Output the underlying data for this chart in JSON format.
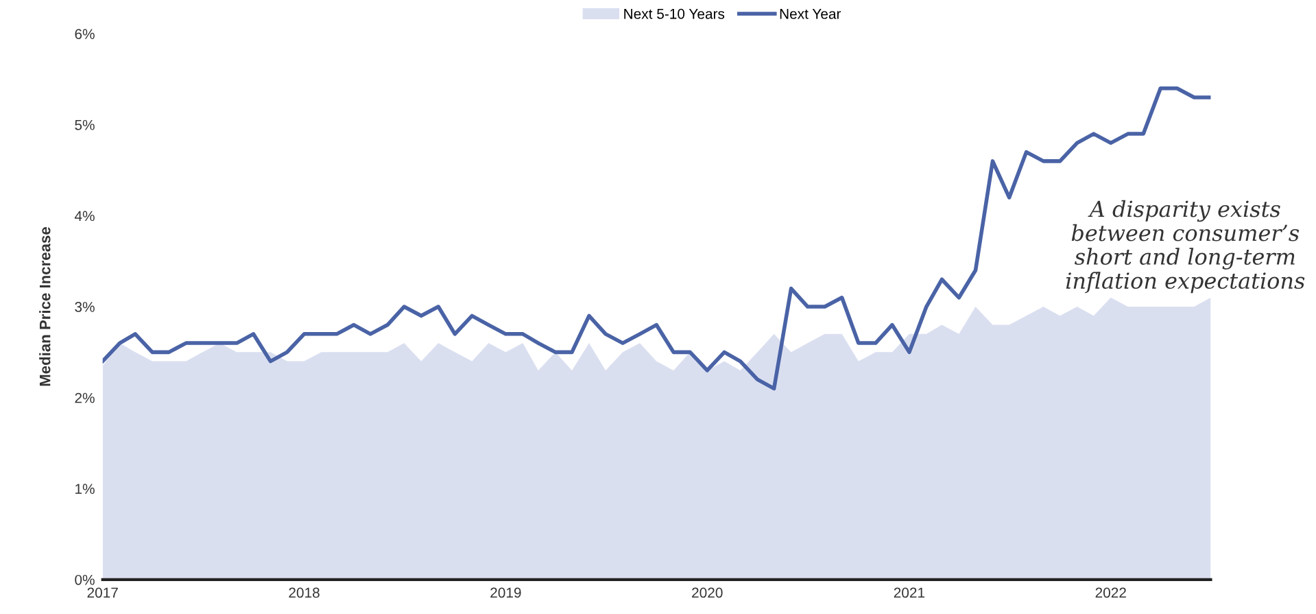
{
  "chart_data": {
    "type": "line",
    "ylabel": "Median Price Increase",
    "x": [
      "2017-01",
      "2017-02",
      "2017-03",
      "2017-04",
      "2017-05",
      "2017-06",
      "2017-07",
      "2017-08",
      "2017-09",
      "2017-10",
      "2017-11",
      "2017-12",
      "2018-01",
      "2018-02",
      "2018-03",
      "2018-04",
      "2018-05",
      "2018-06",
      "2018-07",
      "2018-08",
      "2018-09",
      "2018-10",
      "2018-11",
      "2018-12",
      "2019-01",
      "2019-02",
      "2019-03",
      "2019-04",
      "2019-05",
      "2019-06",
      "2019-07",
      "2019-08",
      "2019-09",
      "2019-10",
      "2019-11",
      "2019-12",
      "2020-01",
      "2020-02",
      "2020-03",
      "2020-04",
      "2020-05",
      "2020-06",
      "2020-07",
      "2020-08",
      "2020-09",
      "2020-10",
      "2020-11",
      "2020-12",
      "2021-01",
      "2021-02",
      "2021-03",
      "2021-04",
      "2021-05",
      "2021-06",
      "2021-07",
      "2021-08",
      "2021-09",
      "2021-10",
      "2021-11",
      "2021-12",
      "2022-01",
      "2022-02",
      "2022-03",
      "2022-04",
      "2022-05",
      "2022-06",
      "2022-07"
    ],
    "xlim": [
      "2017-01",
      "2022-07"
    ],
    "xticks": [
      {
        "value": "2017-01",
        "label": "2017"
      },
      {
        "value": "2018-01",
        "label": "2018"
      },
      {
        "value": "2019-01",
        "label": "2019"
      },
      {
        "value": "2020-01",
        "label": "2020"
      },
      {
        "value": "2021-01",
        "label": "2021"
      },
      {
        "value": "2022-01",
        "label": "2022"
      }
    ],
    "ylim": [
      0,
      6
    ],
    "yticks": [
      {
        "value": 0,
        "label": "0%"
      },
      {
        "value": 1,
        "label": "1%"
      },
      {
        "value": 2,
        "label": "2%"
      },
      {
        "value": 3,
        "label": "3%"
      },
      {
        "value": 4,
        "label": "4%"
      },
      {
        "value": 5,
        "label": "5%"
      },
      {
        "value": 6,
        "label": "6%"
      }
    ],
    "grid": false,
    "legend": "top",
    "marker": "none",
    "line_style": "solid",
    "annotations": [
      "A disparity exists\nbetween consumer’s\nshort and long-term\ninflation expectations"
    ],
    "series": [
      {
        "name": "Next 5-10 Years",
        "type": "area",
        "color": "#dadff0",
        "values": [
          2.35,
          2.6,
          2.5,
          2.4,
          2.4,
          2.4,
          2.5,
          2.6,
          2.5,
          2.5,
          2.5,
          2.4,
          2.4,
          2.5,
          2.5,
          2.5,
          2.5,
          2.5,
          2.6,
          2.4,
          2.6,
          2.5,
          2.4,
          2.6,
          2.5,
          2.6,
          2.3,
          2.5,
          2.3,
          2.6,
          2.3,
          2.5,
          2.6,
          2.4,
          2.3,
          2.5,
          2.3,
          2.4,
          2.3,
          2.5,
          2.7,
          2.5,
          2.6,
          2.7,
          2.7,
          2.4,
          2.5,
          2.5,
          2.7,
          2.7,
          2.8,
          2.7,
          3.0,
          2.8,
          2.8,
          2.9,
          3.0,
          2.9,
          3.0,
          2.9,
          3.1,
          3.0,
          3.0,
          3.0,
          3.0,
          3.0,
          3.1
        ]
      },
      {
        "name": "Next Year",
        "color": "#4a63a6",
        "values": [
          2.4,
          2.6,
          2.7,
          2.5,
          2.5,
          2.6,
          2.6,
          2.6,
          2.6,
          2.7,
          2.4,
          2.5,
          2.7,
          2.7,
          2.7,
          2.8,
          2.7,
          2.8,
          3.0,
          2.9,
          3.0,
          2.7,
          2.9,
          2.8,
          2.7,
          2.7,
          2.6,
          2.5,
          2.5,
          2.9,
          2.7,
          2.6,
          2.7,
          2.8,
          2.5,
          2.5,
          2.3,
          2.5,
          2.4,
          2.2,
          2.1,
          3.2,
          3.0,
          3.0,
          3.1,
          2.6,
          2.6,
          2.8,
          2.5,
          3.0,
          3.3,
          3.1,
          3.4,
          4.6,
          4.2,
          4.7,
          4.6,
          4.6,
          4.8,
          4.9,
          4.8,
          4.9,
          4.9,
          5.4,
          5.4,
          5.3,
          5.3
        ]
      }
    ]
  }
}
